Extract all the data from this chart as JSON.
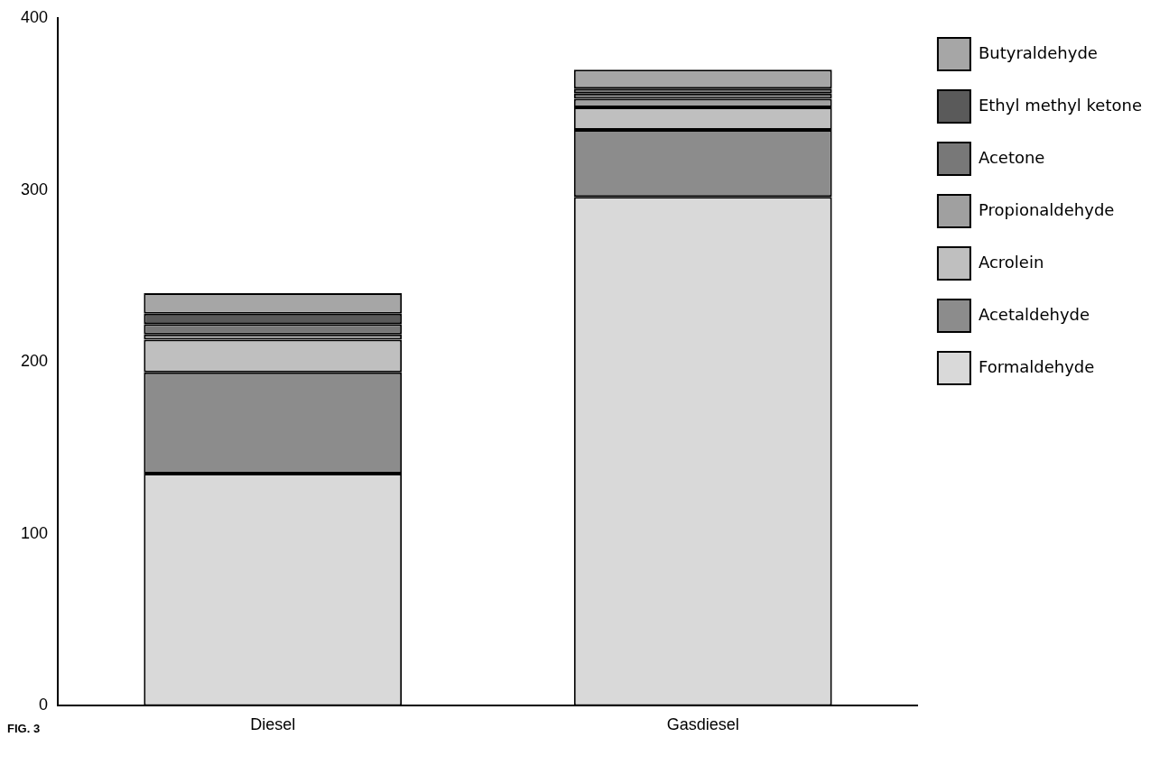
{
  "chart_data": {
    "type": "bar",
    "stacked": true,
    "categories": [
      "Diesel",
      "Gasdiesel"
    ],
    "series": [
      {
        "name": "Formaldehyde",
        "color": "#d9d9d9",
        "values": [
          135,
          296
        ]
      },
      {
        "name": "Acetaldehyde",
        "color": "#8c8c8c",
        "values": [
          59,
          39
        ]
      },
      {
        "name": "Acrolein",
        "color": "#bfbfbf",
        "values": [
          19,
          13
        ]
      },
      {
        "name": "Propionaldehyde",
        "color": "#a0a0a0",
        "values": [
          3,
          5
        ]
      },
      {
        "name": "Acetone",
        "color": "#787878",
        "values": [
          6,
          3
        ]
      },
      {
        "name": "Ethyl methyl ketone",
        "color": "#5a5a5a",
        "values": [
          6,
          3
        ]
      },
      {
        "name": "Butyraldehyde",
        "color": "#a6a6a6",
        "values": [
          12,
          11
        ]
      }
    ],
    "ylim": [
      0,
      400
    ],
    "yticks": [
      0,
      100,
      200,
      300,
      400
    ],
    "grid": false,
    "legend": "right",
    "annotations": [
      "FIG. 3"
    ]
  }
}
